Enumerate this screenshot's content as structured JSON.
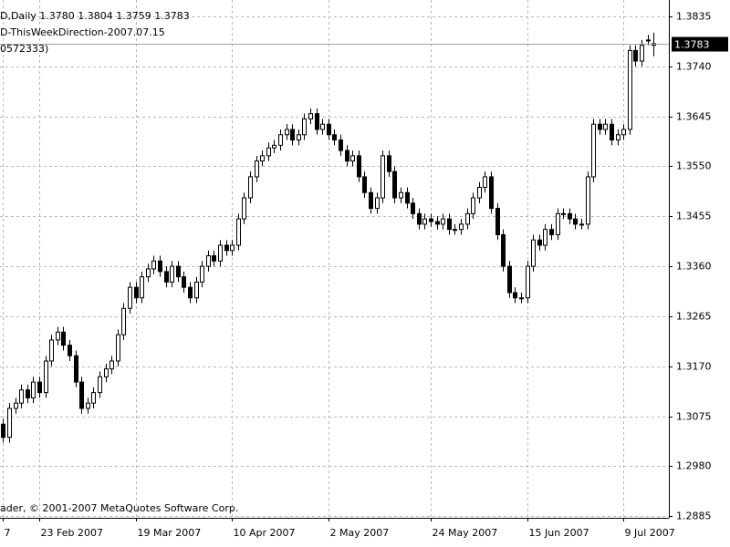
{
  "chart_data": {
    "type": "candlestick",
    "title": "D,Daily  1.3780 1.3804 1.3759 1.3783",
    "subtitle": "D-ThisWeekDirection-2007.07.15",
    "annotation": "0572333)",
    "footer": "ader, © 2001-2007 MetaQuotes Software Corp.",
    "categories": [
      "7",
      null,
      null,
      null,
      null,
      null,
      "23 Feb 2007",
      null,
      null,
      null,
      null,
      null,
      null,
      null,
      null,
      null,
      null,
      null,
      null,
      null,
      null,
      null,
      "19 Mar 2007",
      null,
      null,
      null,
      null,
      null,
      null,
      null,
      null,
      null,
      null,
      null,
      null,
      null,
      null,
      null,
      "10 Apr 2007",
      null,
      null,
      null,
      null,
      null,
      null,
      null,
      null,
      null,
      null,
      null,
      null,
      null,
      null,
      null,
      "2 May 2007",
      null,
      null,
      null,
      null,
      null,
      null,
      null,
      null,
      null,
      null,
      null,
      null,
      null,
      null,
      null,
      null,
      "24 May 2007",
      null,
      null,
      null,
      null,
      null,
      null,
      null,
      null,
      null,
      null,
      null,
      null,
      null,
      null,
      null,
      "15 Jun 2007",
      null,
      null,
      null,
      null,
      null,
      null,
      null,
      null,
      null,
      null,
      null,
      null,
      null,
      null,
      null,
      "9 Jul 2007",
      null,
      null,
      null,
      null,
      null
    ],
    "open": [
      1.306,
      1.3035,
      1.309,
      1.31,
      1.3125,
      1.311,
      1.314,
      1.312,
      1.318,
      1.322,
      1.3235,
      1.321,
      1.319,
      1.314,
      1.309,
      1.31,
      1.312,
      1.315,
      1.3165,
      1.318,
      1.323,
      1.328,
      1.332,
      1.33,
      1.334,
      1.3355,
      1.337,
      1.335,
      1.333,
      1.336,
      1.334,
      1.332,
      1.33,
      1.333,
      1.336,
      1.338,
      1.337,
      1.34,
      1.339,
      1.34,
      1.345,
      1.349,
      1.353,
      1.356,
      1.357,
      1.3585,
      1.359,
      1.361,
      1.362,
      1.36,
      1.361,
      1.364,
      1.365,
      1.362,
      1.363,
      1.361,
      1.36,
      1.358,
      1.356,
      1.357,
      1.353,
      1.35,
      1.347,
      1.349,
      1.357,
      1.354,
      1.349,
      1.35,
      1.348,
      1.346,
      1.344,
      1.345,
      1.3445,
      1.344,
      1.345,
      1.343,
      1.343,
      1.344,
      1.346,
      1.349,
      1.351,
      1.353,
      1.347,
      1.342,
      1.336,
      1.331,
      1.33,
      1.33,
      1.336,
      1.341,
      1.34,
      1.343,
      1.342,
      1.346,
      1.346,
      1.345,
      1.344,
      1.344,
      1.353,
      1.363,
      1.362,
      1.363,
      1.36,
      1.361,
      1.362,
      1.377,
      1.375,
      1.379,
      1.378
    ],
    "high": [
      1.307,
      1.31,
      1.311,
      1.3135,
      1.3135,
      1.315,
      1.315,
      1.319,
      1.323,
      1.3245,
      1.3245,
      1.322,
      1.32,
      1.315,
      1.311,
      1.313,
      1.316,
      1.3175,
      1.319,
      1.324,
      1.329,
      1.333,
      1.333,
      1.335,
      1.3365,
      1.338,
      1.338,
      1.336,
      1.337,
      1.337,
      1.335,
      1.333,
      1.334,
      1.337,
      1.339,
      1.339,
      1.341,
      1.341,
      1.341,
      1.346,
      1.35,
      1.354,
      1.357,
      1.358,
      1.3595,
      1.36,
      1.362,
      1.363,
      1.363,
      1.362,
      1.365,
      1.366,
      1.366,
      1.364,
      1.364,
      1.362,
      1.361,
      1.359,
      1.358,
      1.358,
      1.354,
      1.351,
      1.35,
      1.358,
      1.358,
      1.355,
      1.351,
      1.351,
      1.349,
      1.347,
      1.346,
      1.346,
      1.3455,
      1.346,
      1.346,
      1.344,
      1.345,
      1.347,
      1.35,
      1.352,
      1.354,
      1.354,
      1.348,
      1.343,
      1.337,
      1.332,
      1.331,
      1.337,
      1.342,
      1.342,
      1.344,
      1.344,
      1.347,
      1.347,
      1.347,
      1.346,
      1.345,
      1.354,
      1.364,
      1.364,
      1.364,
      1.364,
      1.362,
      1.363,
      1.378,
      1.378,
      1.379,
      1.38,
      1.3804
    ],
    "low": [
      1.3025,
      1.3025,
      1.308,
      1.309,
      1.31,
      1.31,
      1.311,
      1.311,
      1.317,
      1.321,
      1.32,
      1.318,
      1.313,
      1.308,
      1.308,
      1.309,
      1.311,
      1.314,
      1.3155,
      1.317,
      1.322,
      1.327,
      1.329,
      1.329,
      1.333,
      1.3345,
      1.334,
      1.332,
      1.332,
      1.333,
      1.331,
      1.329,
      1.329,
      1.332,
      1.335,
      1.336,
      1.336,
      1.338,
      1.338,
      1.339,
      1.344,
      1.348,
      1.352,
      1.355,
      1.356,
      1.3575,
      1.358,
      1.36,
      1.359,
      1.359,
      1.36,
      1.363,
      1.361,
      1.361,
      1.36,
      1.359,
      1.357,
      1.355,
      1.355,
      1.352,
      1.349,
      1.346,
      1.346,
      1.348,
      1.353,
      1.348,
      1.348,
      1.347,
      1.345,
      1.343,
      1.343,
      1.3435,
      1.343,
      1.343,
      1.342,
      1.342,
      1.342,
      1.343,
      1.345,
      1.348,
      1.35,
      1.346,
      1.341,
      1.335,
      1.33,
      1.329,
      1.329,
      1.329,
      1.335,
      1.339,
      1.339,
      1.341,
      1.341,
      1.345,
      1.344,
      1.343,
      1.343,
      1.343,
      1.352,
      1.361,
      1.361,
      1.359,
      1.359,
      1.36,
      1.361,
      1.374,
      1.374,
      1.378,
      1.3759
    ],
    "close": [
      1.3035,
      1.309,
      1.31,
      1.3125,
      1.311,
      1.314,
      1.312,
      1.318,
      1.322,
      1.3235,
      1.321,
      1.319,
      1.314,
      1.309,
      1.31,
      1.312,
      1.315,
      1.3165,
      1.318,
      1.323,
      1.328,
      1.332,
      1.33,
      1.334,
      1.3355,
      1.337,
      1.335,
      1.333,
      1.336,
      1.334,
      1.332,
      1.33,
      1.333,
      1.336,
      1.338,
      1.337,
      1.34,
      1.339,
      1.34,
      1.345,
      1.349,
      1.353,
      1.356,
      1.357,
      1.3585,
      1.359,
      1.361,
      1.362,
      1.36,
      1.361,
      1.364,
      1.365,
      1.362,
      1.363,
      1.361,
      1.36,
      1.358,
      1.356,
      1.357,
      1.353,
      1.35,
      1.347,
      1.349,
      1.357,
      1.354,
      1.349,
      1.35,
      1.348,
      1.346,
      1.344,
      1.345,
      1.3445,
      1.344,
      1.345,
      1.343,
      1.343,
      1.344,
      1.346,
      1.349,
      1.351,
      1.353,
      1.347,
      1.342,
      1.336,
      1.331,
      1.33,
      1.33,
      1.336,
      1.341,
      1.34,
      1.343,
      1.342,
      1.346,
      1.346,
      1.345,
      1.344,
      1.344,
      1.353,
      1.363,
      1.362,
      1.363,
      1.36,
      1.361,
      1.362,
      1.377,
      1.375,
      1.378,
      1.379,
      1.3783
    ],
    "bull_color": "#ffffff",
    "bear_color": "#000000",
    "wick_color": "#000000",
    "current_price": 1.3783,
    "ylim": [
      1.2882,
      1.3866
    ],
    "yticks": [
      1.3835,
      {
        "value": 1.374,
        "label": "1.3740"
      },
      1.3645,
      {
        "value": 1.355,
        "label": "1.3550"
      },
      1.3455,
      {
        "value": 1.336,
        "label": "1.3360"
      },
      1.3265,
      {
        "value": 1.317,
        "label": "1.3170"
      },
      1.3075,
      {
        "value": 1.298,
        "label": "1.2980"
      },
      1.2885
    ],
    "grid": true
  }
}
